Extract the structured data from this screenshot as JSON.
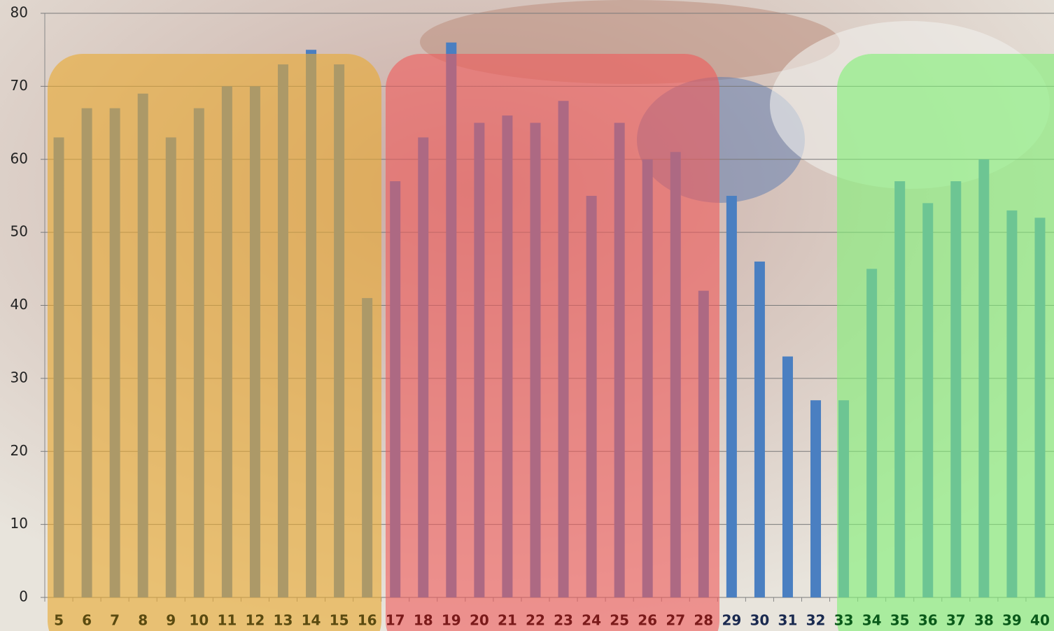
{
  "chart_data": {
    "type": "bar",
    "categories": [
      "5",
      "6",
      "7",
      "8",
      "9",
      "10",
      "11",
      "12",
      "13",
      "14",
      "15",
      "16",
      "17",
      "18",
      "19",
      "20",
      "21",
      "22",
      "23",
      "24",
      "25",
      "26",
      "27",
      "28",
      "29",
      "30",
      "31",
      "32",
      "33",
      "34",
      "35",
      "36",
      "37",
      "38",
      "39",
      "40"
    ],
    "values": [
      63,
      67,
      67,
      69,
      63,
      67,
      70,
      70,
      73,
      75,
      73,
      41,
      57,
      63,
      76,
      65,
      66,
      65,
      68,
      55,
      65,
      60,
      61,
      42,
      55,
      46,
      33,
      27,
      27,
      45,
      57,
      54,
      57,
      60,
      53,
      52
    ],
    "color": "#4a7fc1",
    "ylim": [
      0,
      80
    ],
    "yticks": [
      0,
      10,
      20,
      30,
      40,
      50,
      60,
      70,
      80
    ],
    "grid": true
  }
}
